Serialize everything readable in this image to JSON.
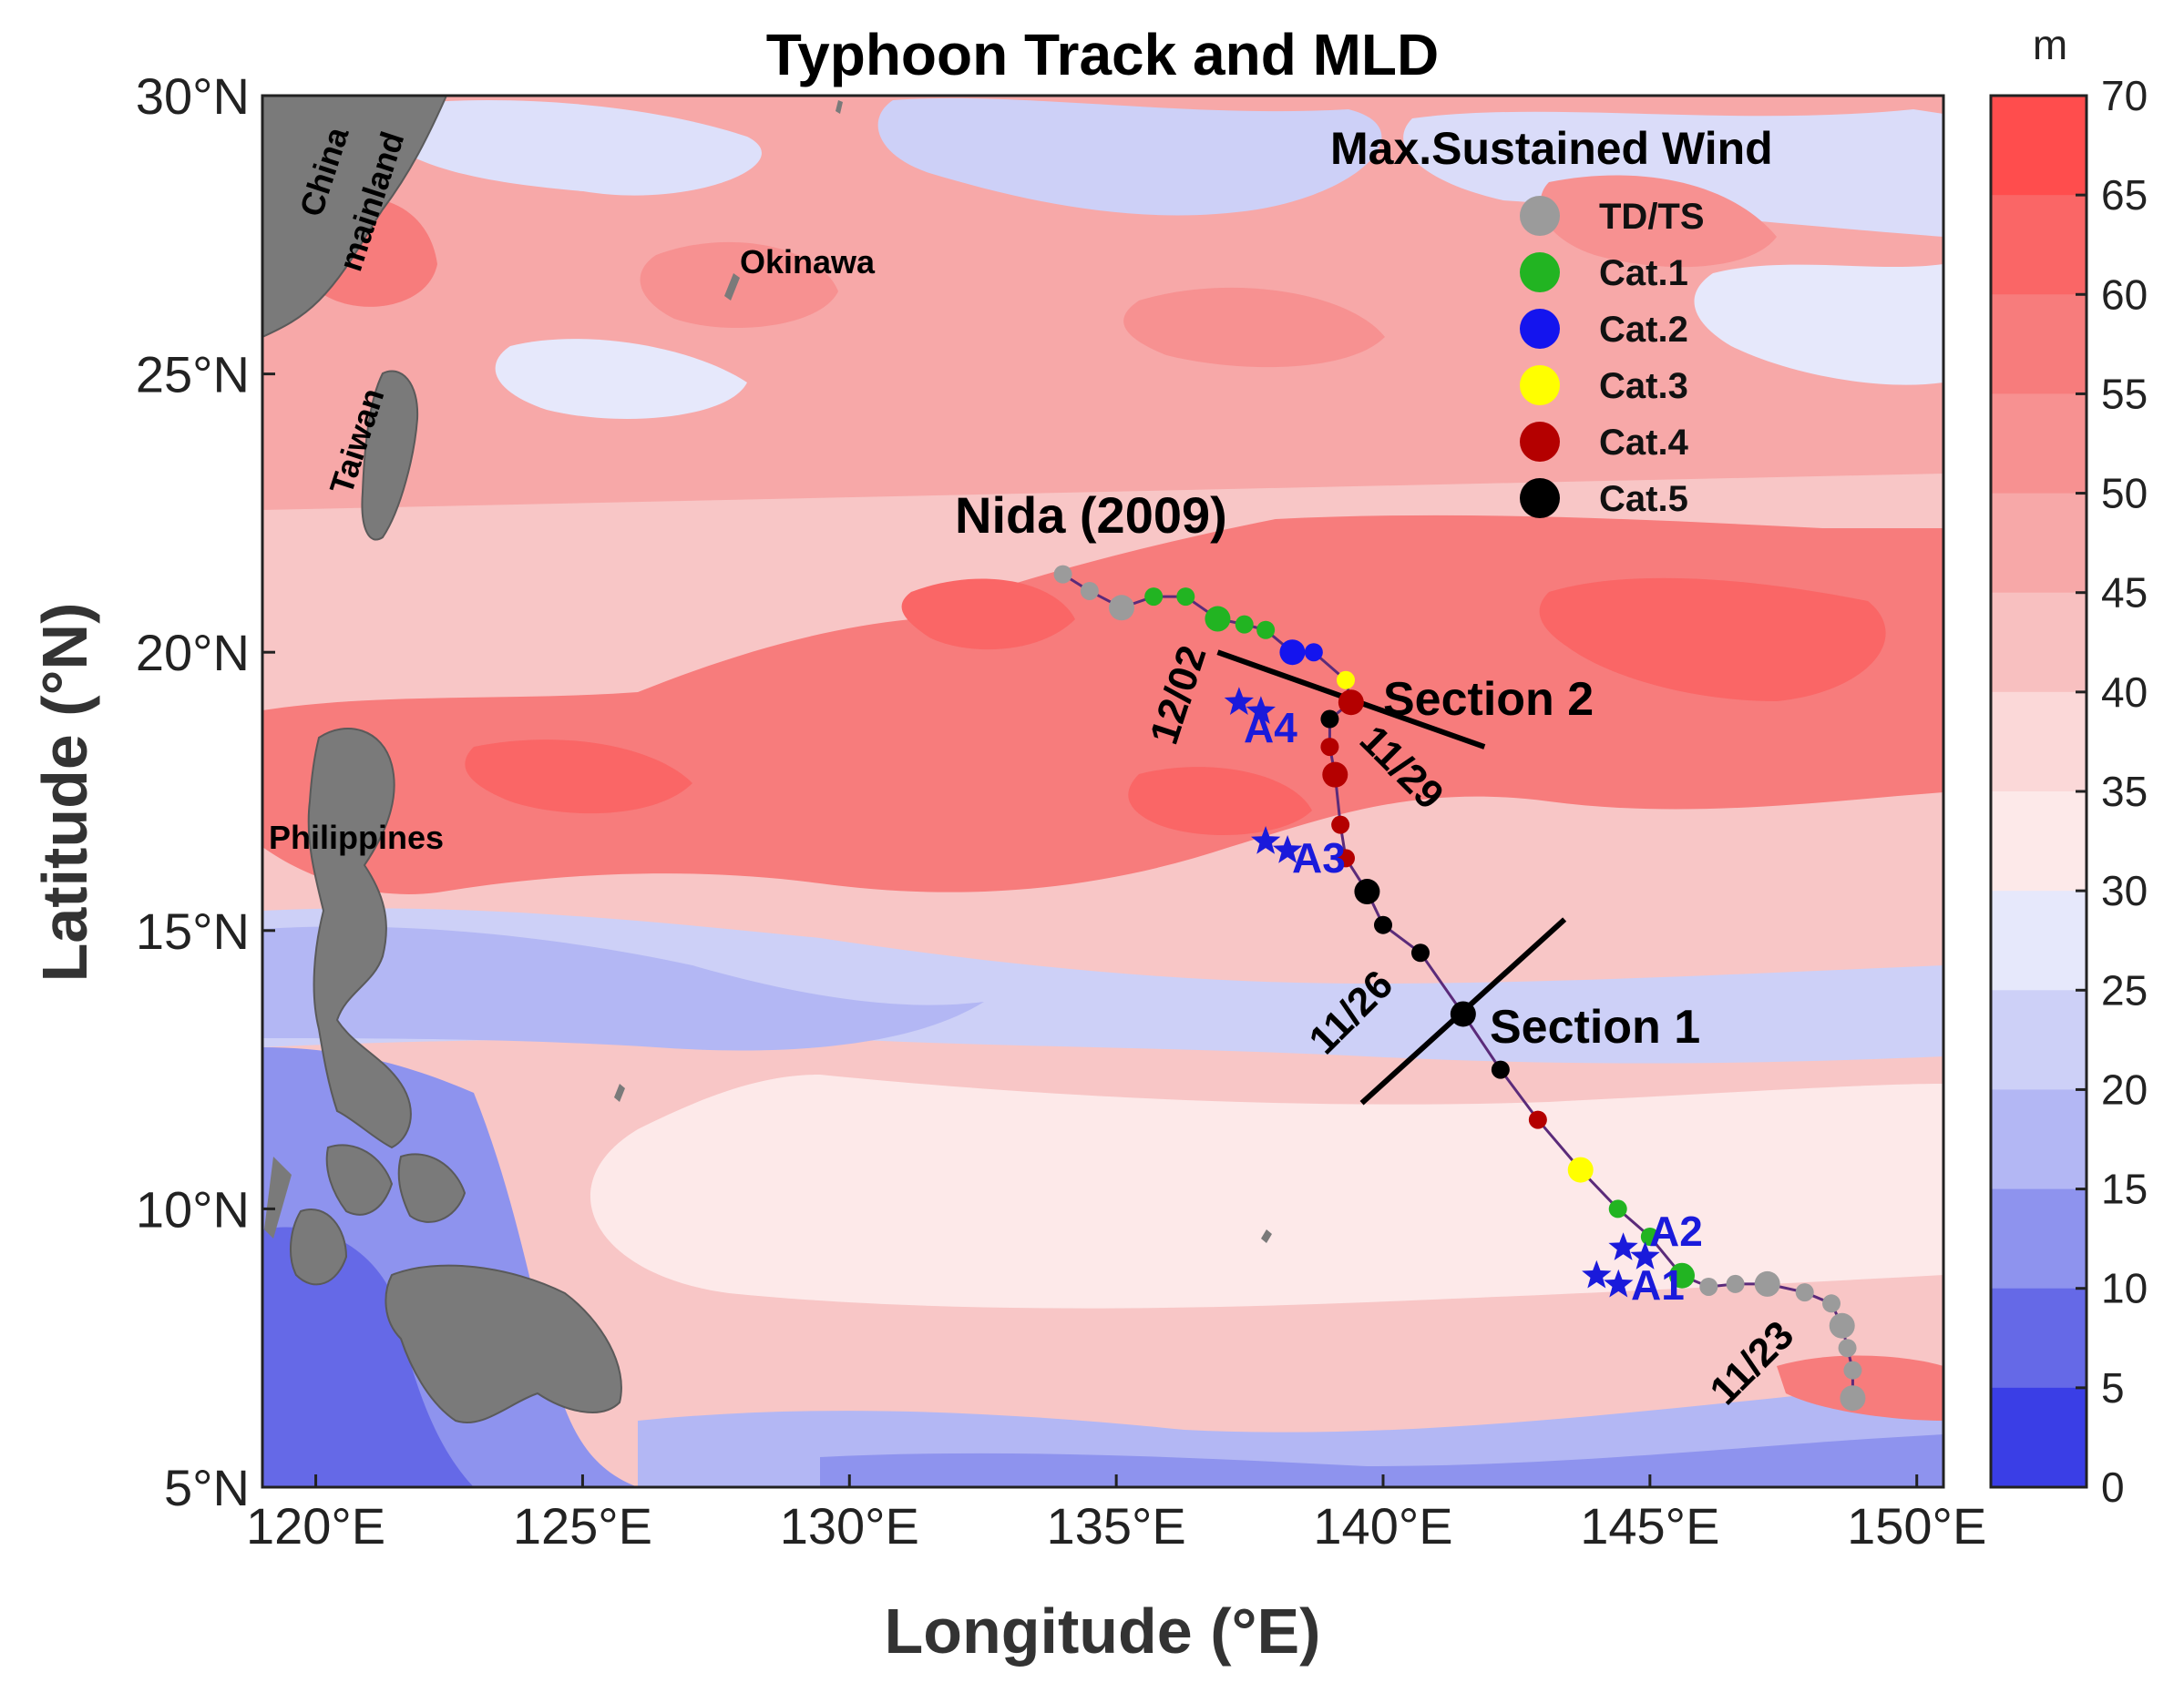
{
  "map": {
    "title": "Typhoon Track and MLD",
    "xlabel": "Longitude (°E)",
    "ylabel": "Latitude (°N)",
    "x_ticks": [
      "120°E",
      "125°E",
      "130°E",
      "135°E",
      "140°E",
      "145°E",
      "150°E"
    ],
    "y_ticks": [
      "30°N",
      "25°N",
      "20°N",
      "15°N",
      "10°N",
      "5°N"
    ],
    "lon_range": [
      119,
      150.5
    ],
    "lat_range": [
      5,
      30
    ]
  },
  "colorbar": {
    "unit": "m",
    "ticks": [
      "70",
      "65",
      "60",
      "55",
      "50",
      "45",
      "40",
      "35",
      "30",
      "25",
      "20",
      "15",
      "10",
      "5",
      "0"
    ],
    "colors": [
      "#ff4d4d",
      "#fa6666",
      "#f77c7c",
      "#f79191",
      "#f7a8a8",
      "#f8c0c0",
      "#fbd8d8",
      "#fde9e9",
      "#e6e8fb",
      "#cdd0f7",
      "#b3b7f4",
      "#8e93ee",
      "#6569e7",
      "#3a3ee6",
      "#0000ff"
    ]
  },
  "places": {
    "china": "China",
    "mainland": "mainland",
    "taiwan": "Taiwan",
    "okinawa": "Okinawa",
    "philippines": "Philippines"
  },
  "typhoon": {
    "name": "Nida (2009)",
    "track_color": "#5b2b7a"
  },
  "legend": {
    "title": "Max.Sustained Wind",
    "items": [
      {
        "label": "TD/TS",
        "color": "#9b9b9b"
      },
      {
        "label": "Cat.1",
        "color": "#22b422"
      },
      {
        "label": "Cat.2",
        "color": "#1414ee"
      },
      {
        "label": "Cat.3",
        "color": "#ffff00"
      },
      {
        "label": "Cat.4",
        "color": "#b40000"
      },
      {
        "label": "Cat.5",
        "color": "#000000"
      }
    ]
  },
  "sections": {
    "section1": "Section 1",
    "section2": "Section 2"
  },
  "dates": {
    "d1123": "11/23",
    "d1126": "11/26",
    "d1129": "11/29",
    "d1202": "12/02"
  },
  "argo": {
    "a1": "A1",
    "a2": "A2",
    "a3": "A3",
    "a4": "A4"
  },
  "chart_data": {
    "type": "scatter",
    "title": "Typhoon Track and MLD",
    "xlabel": "Longitude (°E)",
    "ylabel": "Latitude (°N)",
    "xlim": [
      119,
      150.5
    ],
    "ylim": [
      5,
      30
    ],
    "colorbar_range": [
      0,
      70
    ],
    "colorbar_unit": "m",
    "track": [
      {
        "lon": 148.8,
        "lat": 6.6,
        "cat": "TD/TS"
      },
      {
        "lon": 148.8,
        "lat": 7.1,
        "cat": "TD/TS"
      },
      {
        "lon": 148.7,
        "lat": 7.5,
        "cat": "TD/TS"
      },
      {
        "lon": 148.6,
        "lat": 7.9,
        "cat": "TD/TS"
      },
      {
        "lon": 148.4,
        "lat": 8.3,
        "cat": "TD/TS"
      },
      {
        "lon": 147.9,
        "lat": 8.5,
        "cat": "TD/TS"
      },
      {
        "lon": 147.2,
        "lat": 8.65,
        "cat": "TD/TS"
      },
      {
        "lon": 146.6,
        "lat": 8.65,
        "cat": "TD/TS"
      },
      {
        "lon": 146.1,
        "lat": 8.6,
        "cat": "TD/TS"
      },
      {
        "lon": 145.6,
        "lat": 8.8,
        "cat": "Cat.1"
      },
      {
        "lon": 145.0,
        "lat": 9.5,
        "cat": "Cat.1"
      },
      {
        "lon": 144.4,
        "lat": 10.0,
        "cat": "Cat.1"
      },
      {
        "lon": 143.7,
        "lat": 10.7,
        "cat": "Cat.3"
      },
      {
        "lon": 142.9,
        "lat": 11.6,
        "cat": "Cat.4"
      },
      {
        "lon": 142.2,
        "lat": 12.5,
        "cat": "Cat.5"
      },
      {
        "lon": 141.5,
        "lat": 13.5,
        "cat": "Cat.5"
      },
      {
        "lon": 140.7,
        "lat": 14.6,
        "cat": "Cat.5"
      },
      {
        "lon": 140.0,
        "lat": 15.1,
        "cat": "Cat.5"
      },
      {
        "lon": 139.7,
        "lat": 15.7,
        "cat": "Cat.5"
      },
      {
        "lon": 139.3,
        "lat": 16.3,
        "cat": "Cat.4"
      },
      {
        "lon": 139.2,
        "lat": 16.9,
        "cat": "Cat.4"
      },
      {
        "lon": 139.1,
        "lat": 17.8,
        "cat": "Cat.4"
      },
      {
        "lon": 139.0,
        "lat": 18.3,
        "cat": "Cat.4"
      },
      {
        "lon": 139.0,
        "lat": 18.8,
        "cat": "Cat.5"
      },
      {
        "lon": 139.4,
        "lat": 19.1,
        "cat": "Cat.4"
      },
      {
        "lon": 139.3,
        "lat": 19.5,
        "cat": "Cat.3"
      },
      {
        "lon": 138.7,
        "lat": 20.0,
        "cat": "Cat.2"
      },
      {
        "lon": 138.3,
        "lat": 20.0,
        "cat": "Cat.2"
      },
      {
        "lon": 137.8,
        "lat": 20.4,
        "cat": "Cat.1"
      },
      {
        "lon": 137.4,
        "lat": 20.5,
        "cat": "Cat.1"
      },
      {
        "lon": 136.9,
        "lat": 20.6,
        "cat": "Cat.1"
      },
      {
        "lon": 136.3,
        "lat": 21.0,
        "cat": "Cat.1"
      },
      {
        "lon": 135.7,
        "lat": 21.0,
        "cat": "Cat.1"
      },
      {
        "lon": 135.1,
        "lat": 20.8,
        "cat": "TD/TS"
      },
      {
        "lon": 134.5,
        "lat": 21.1,
        "cat": "TD/TS"
      },
      {
        "lon": 134.0,
        "lat": 21.4,
        "cat": "TD/TS"
      }
    ],
    "sections": [
      {
        "name": "Section 1",
        "from": [
          139.6,
          11.9
        ],
        "to": [
          143.4,
          15.2
        ]
      },
      {
        "name": "Section 2",
        "from": [
          136.9,
          20.0
        ],
        "to": [
          141.9,
          18.3
        ]
      }
    ],
    "argo_floats": [
      {
        "name": "A1",
        "lon": 144.0,
        "lat": 8.8
      },
      {
        "name": "A2",
        "lon": 144.5,
        "lat": 9.3
      },
      {
        "name": "A3",
        "lon": 137.8,
        "lat": 16.6
      },
      {
        "name": "A4",
        "lon": 137.3,
        "lat": 19.1
      }
    ]
  }
}
